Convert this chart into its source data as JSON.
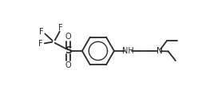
{
  "bg_color": "#ffffff",
  "line_color": "#2a2a2a",
  "line_width": 1.3,
  "font_size": 7.0,
  "fig_width": 2.58,
  "fig_height": 1.23,
  "dpi": 100,
  "xlim": [
    0,
    10.5
  ],
  "ylim": [
    0,
    4.9
  ]
}
